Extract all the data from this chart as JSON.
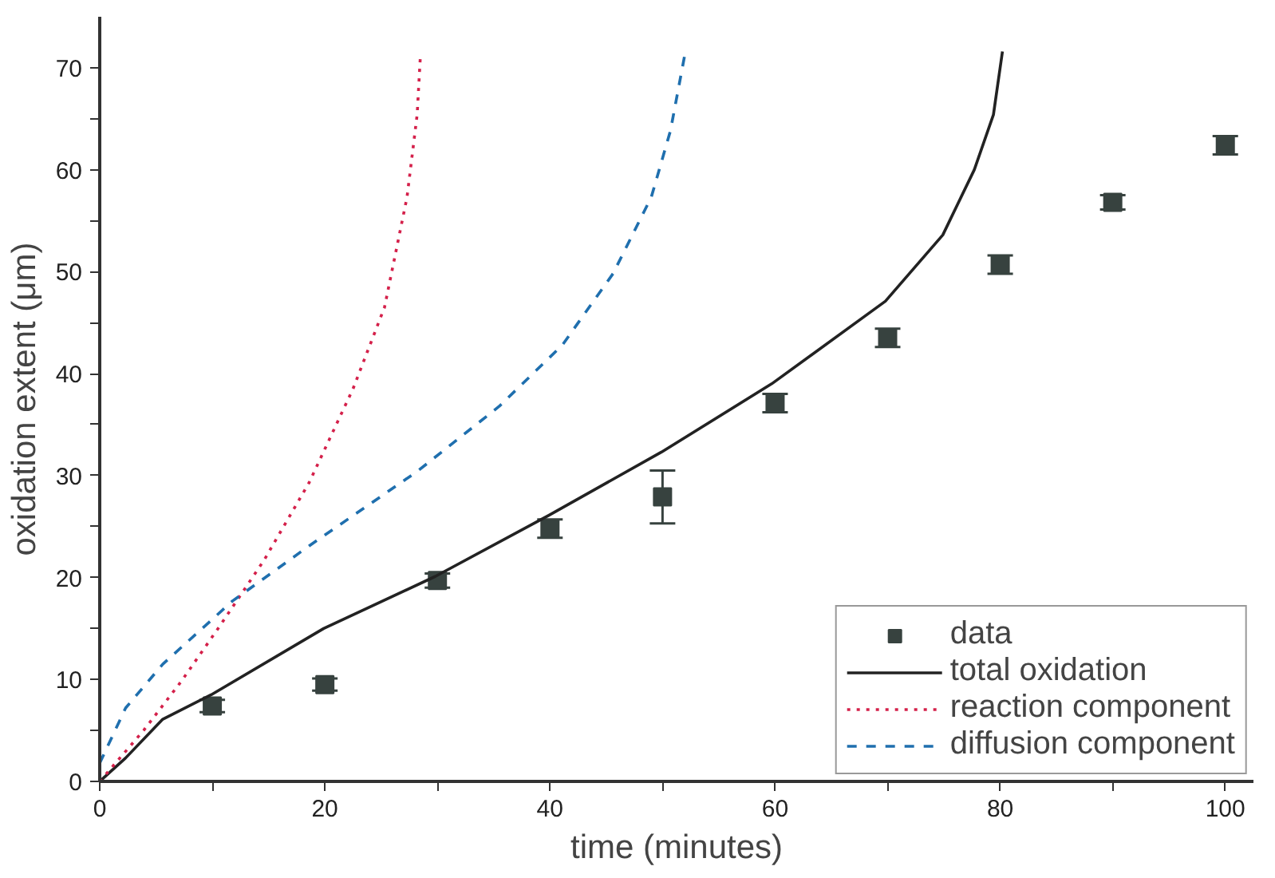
{
  "chart_data": {
    "type": "scatter",
    "xlabel": "time (minutes)",
    "ylabel": "oxidation extent (μm)",
    "xlim": [
      0,
      102.5
    ],
    "ylim": [
      0,
      75
    ],
    "xticks": [
      0,
      {
        "value": 10,
        "label": null
      },
      20,
      {
        "value": 30,
        "label": null
      },
      40,
      {
        "value": 50,
        "label": null
      },
      60,
      {
        "value": 70,
        "label": null
      },
      80,
      {
        "value": 90,
        "label": null
      },
      100
    ],
    "yticks": [
      0,
      {
        "value": 5,
        "label": null
      },
      10,
      {
        "value": 15,
        "label": null
      },
      20,
      {
        "value": 25,
        "label": null
      },
      30,
      {
        "value": 35,
        "label": null
      },
      40,
      {
        "value": 45,
        "label": null
      },
      50,
      {
        "value": 55,
        "label": null
      },
      60,
      {
        "value": 65,
        "label": null
      },
      70
    ],
    "grid": false,
    "legend": "bottom right",
    "series": [
      {
        "name": "data",
        "marker": "square",
        "color": "#37423f",
        "x": [
          10,
          20,
          30,
          40,
          50,
          60,
          70,
          80,
          90,
          100
        ],
        "values": [
          7.4,
          9.5,
          19.7,
          24.8,
          27.9,
          37.1,
          43.5,
          50.7,
          56.8,
          62.4
        ],
        "errors": [
          0.6,
          0.6,
          0.7,
          0.9,
          2.6,
          0.9,
          0.9,
          0.9,
          0.7,
          0.9
        ]
      },
      {
        "name": "total oxidation",
        "type": "line",
        "line_style": "solid",
        "color": "#222222",
        "x": [
          0,
          2.3,
          5.6,
          9.9,
          19.9,
          29.8,
          39.9,
          49.9,
          59.7,
          69.8,
          74.9,
          77.7,
          79.4,
          80.2
        ],
        "values": [
          0,
          2.3,
          6.1,
          8.5,
          15.0,
          20.1,
          26.1,
          32.3,
          39.0,
          47.1,
          53.6,
          60.0,
          65.4,
          71.6
        ]
      },
      {
        "name": "reaction component",
        "type": "line",
        "line_style": "dotted",
        "color": "#d4204a",
        "x": [
          0,
          3.9,
          7.3,
          10.7,
          14.6,
          18.6,
          22.5,
          25.3,
          27.3,
          28.2,
          28.5
        ],
        "values": [
          0,
          5.0,
          9.9,
          15.3,
          21.7,
          29.3,
          38.5,
          46.5,
          57.3,
          65.4,
          71.4
        ]
      },
      {
        "name": "diffusion component",
        "type": "line",
        "line_style": "dashed",
        "color": "#1f6fae",
        "x": [
          0,
          2.3,
          5.6,
          11.8,
          18.6,
          28.2,
          35.5,
          41.1,
          45.6,
          49.0,
          50.7,
          52.0
        ],
        "values": [
          1.8,
          7.2,
          11.5,
          17.7,
          23.1,
          30.4,
          36.8,
          42.8,
          49.8,
          57.3,
          63.8,
          71.4
        ]
      }
    ]
  }
}
